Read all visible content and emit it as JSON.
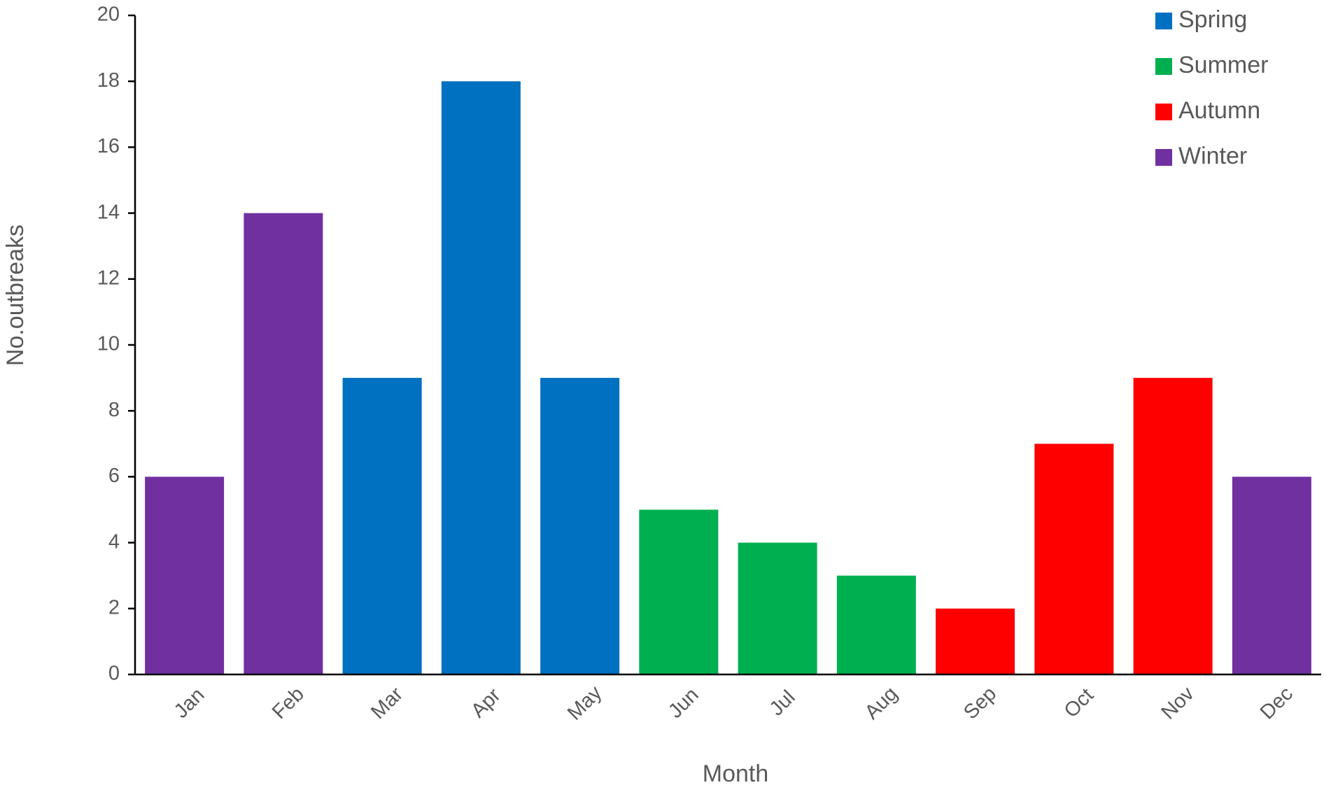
{
  "chart_data": {
    "type": "bar",
    "x_label": "Month",
    "y_label": "No.outbreaks",
    "categories": [
      "Jan",
      "Feb",
      "Mar",
      "Apr",
      "May",
      "Jun",
      "Jul",
      "Aug",
      "Sep",
      "Oct",
      "Nov",
      "Dec"
    ],
    "series": [
      {
        "name": "Spring",
        "color": "#0070c0",
        "values": [
          null,
          null,
          9,
          18,
          9,
          null,
          null,
          null,
          null,
          null,
          null,
          null
        ]
      },
      {
        "name": "Summer",
        "color": "#00b050",
        "values": [
          null,
          null,
          null,
          null,
          null,
          5,
          4,
          3,
          null,
          null,
          null,
          null
        ]
      },
      {
        "name": "Autumn",
        "color": "#ff0000",
        "values": [
          null,
          null,
          null,
          null,
          null,
          null,
          null,
          null,
          2,
          7,
          9,
          null
        ]
      },
      {
        "name": "Winter",
        "color": "#7030a0",
        "values": [
          6,
          14,
          null,
          null,
          null,
          null,
          null,
          null,
          null,
          null,
          null,
          6
        ]
      }
    ],
    "ylim": [
      0,
      20
    ],
    "yticks": [
      0,
      2,
      4,
      6,
      8,
      10,
      12,
      14,
      16,
      18,
      20
    ],
    "grid": false,
    "legend": "top-right"
  }
}
